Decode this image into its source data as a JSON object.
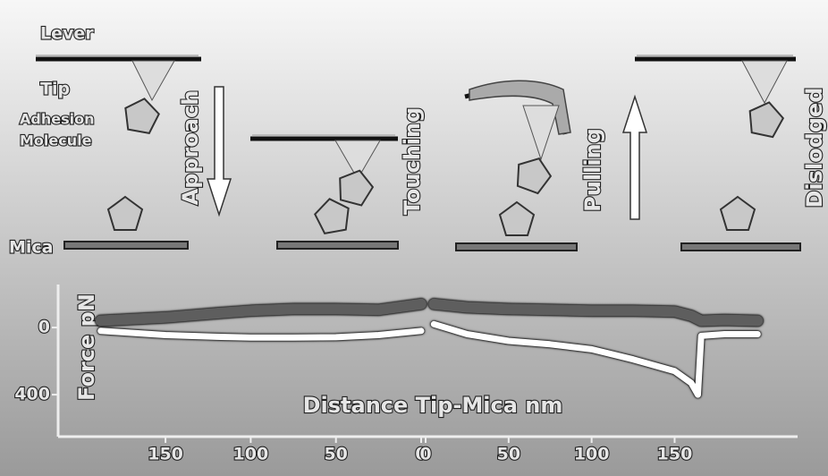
{
  "labels": {
    "lever": "Lever",
    "tip": "Tip",
    "adhesion": "Adhesion",
    "molecule": "Molecule",
    "mica": "Mica"
  },
  "stages": [
    "Approach",
    "Touching",
    "Pulling",
    "Dislodged"
  ],
  "chart_data": [
    {
      "type": "line",
      "ylabel": "Force pN",
      "xlabel": "Distance Tip-Mica nm",
      "xlim": [
        213,
        0
      ],
      "ylim": [
        650,
        -256
      ],
      "xticks": [
        150,
        100,
        50,
        0
      ],
      "yticks": [
        0,
        400
      ],
      "x": [
        188,
        150,
        120,
        100,
        75,
        50,
        25,
        0
      ],
      "series": [
        {
          "color": "#5e5e5e",
          "values": [
            -40,
            -60,
            -85,
            -100,
            -110,
            -110,
            -105,
            -140
          ]
        },
        {
          "color": "#ffffff",
          "values": [
            20,
            45,
            55,
            60,
            60,
            58,
            45,
            20
          ]
        }
      ]
    },
    {
      "type": "line",
      "xlim": [
        0,
        223
      ],
      "ylim": [
        650,
        -256
      ],
      "xticks": [
        0,
        50,
        100,
        150
      ],
      "x": [
        5,
        25,
        50,
        75,
        100,
        125,
        150,
        160,
        164,
        166,
        180,
        200
      ],
      "series": [
        {
          "color": "#5e5e5e",
          "values": [
            -140,
            -120,
            -110,
            -105,
            -100,
            -100,
            -95,
            -70,
            -50,
            -40,
            -45,
            -40
          ]
        },
        {
          "color": "#ffffff",
          "values": [
            -20,
            40,
            80,
            100,
            130,
            190,
            260,
            330,
            400,
            50,
            40,
            40
          ]
        }
      ]
    }
  ]
}
